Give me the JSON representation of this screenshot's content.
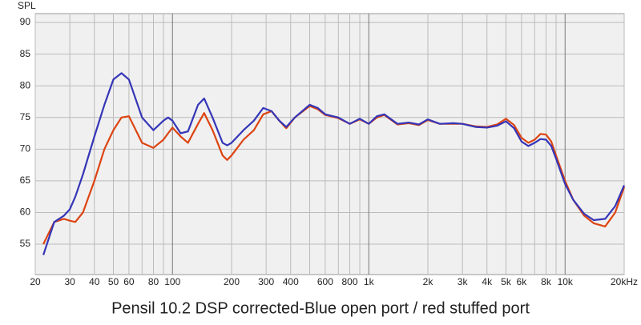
{
  "chart_data": {
    "type": "line",
    "y_axis_label": "SPL",
    "title": "Pensil 10.2 DSP corrected-Blue open port / red stuffed port",
    "xscale": "log",
    "grid": true,
    "xlim": [
      20,
      20000
    ],
    "ylim": [
      50.2,
      91.4
    ],
    "yticks": [
      55,
      60,
      65,
      70,
      75,
      80,
      85,
      90
    ],
    "xticks": [
      20,
      30,
      40,
      50,
      60,
      80,
      100,
      200,
      300,
      400,
      600,
      800,
      {
        "value": 1000,
        "label": "1k"
      },
      {
        "value": 2000,
        "label": "2k"
      },
      {
        "value": 3000,
        "label": "3k"
      },
      {
        "value": 4000,
        "label": "4k"
      },
      {
        "value": 5000,
        "label": "5k"
      },
      {
        "value": 6000,
        "label": "6k"
      },
      {
        "value": 8000,
        "label": "8k"
      },
      {
        "value": 10000,
        "label": "10k"
      },
      {
        "value": 20000,
        "label": "20kHz"
      }
    ],
    "x_minor_ticks": [
      70,
      90,
      500,
      700,
      900,
      7000,
      9000
    ],
    "x": [
      22,
      25,
      28,
      30,
      32,
      35,
      40,
      45,
      50,
      55,
      60,
      70,
      80,
      90,
      95,
      100,
      110,
      120,
      135,
      145,
      160,
      180,
      190,
      200,
      230,
      260,
      290,
      320,
      350,
      380,
      420,
      500,
      550,
      600,
      700,
      800,
      900,
      1000,
      1100,
      1200,
      1400,
      1600,
      1800,
      2000,
      2300,
      2700,
      3000,
      3500,
      4000,
      4500,
      5000,
      5500,
      6000,
      6500,
      7000,
      7500,
      8000,
      8500,
      9000,
      10000,
      11000,
      12500,
      14000,
      16000,
      18000,
      20000
    ],
    "series": [
      {
        "name": "red stuffed port",
        "color": "#dd4411",
        "values": [
          55,
          58.5,
          59,
          58.7,
          58.5,
          60,
          65,
          70,
          73,
          75,
          75.2,
          71,
          70.2,
          71.5,
          72.5,
          73.4,
          72,
          71,
          74,
          75.7,
          73,
          69,
          68.3,
          69,
          71.5,
          73,
          75.5,
          76,
          74.5,
          73.3,
          75,
          76.8,
          76.3,
          75.4,
          74.9,
          74,
          74.7,
          74,
          75,
          75.4,
          73.9,
          74.1,
          73.8,
          74.6,
          74,
          74,
          74,
          73.6,
          73.5,
          73.9,
          74.8,
          73.8,
          71.8,
          71,
          71.5,
          72.4,
          72.3,
          71.2,
          69,
          65,
          62,
          59.5,
          58.3,
          57.8,
          60,
          64
        ]
      },
      {
        "name": "blue open port",
        "color": "#3535b8",
        "values": [
          53.3,
          58.5,
          59.5,
          60.5,
          62.5,
          66,
          72,
          77,
          81,
          82,
          81,
          75,
          73,
          74.5,
          75,
          74.5,
          72.5,
          72.8,
          77,
          78,
          75,
          71,
          70.6,
          71,
          73,
          74.5,
          76.5,
          76,
          74.5,
          73.5,
          75,
          77,
          76.5,
          75.5,
          75,
          74,
          74.8,
          74,
          75.2,
          75.5,
          74,
          74.2,
          73.9,
          74.7,
          74,
          74.1,
          74,
          73.5,
          73.4,
          73.7,
          74.4,
          73.3,
          71.2,
          70.5,
          71,
          71.6,
          71.5,
          70.5,
          68.5,
          64.5,
          62,
          59.8,
          58.8,
          59,
          61,
          64.3
        ]
      }
    ]
  }
}
